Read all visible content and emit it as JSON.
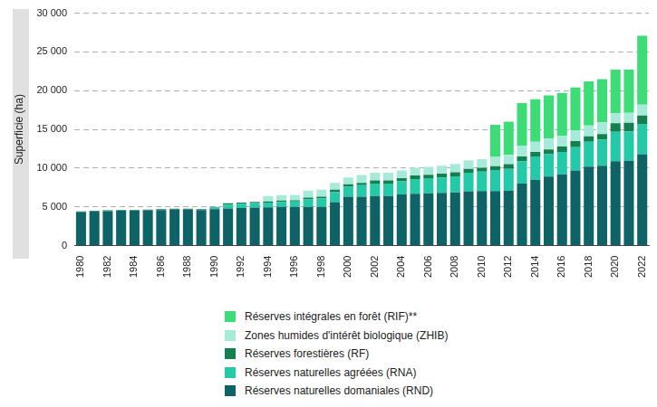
{
  "chart_data": {
    "type": "bar",
    "stacked": true,
    "grid": true,
    "legend": "bottom",
    "y_label": "Superficie (ha)",
    "categories": [
      "1980",
      null,
      "1982",
      null,
      "1984",
      null,
      "1986",
      null,
      "1988",
      null,
      "1990",
      null,
      "1992",
      null,
      "1994",
      null,
      "1996",
      null,
      "1998",
      null,
      "2000",
      null,
      "2002",
      null,
      "2004",
      null,
      "2006",
      null,
      "2008",
      null,
      "2010",
      null,
      "2012",
      null,
      "2014",
      null,
      "2016",
      null,
      "2018",
      null,
      "2020",
      null,
      "2022"
    ],
    "ylim": [
      0,
      30000
    ],
    "yticks": [
      0,
      {
        "value": 5000,
        "label": "5 000"
      },
      {
        "value": 10000,
        "label": "10 000"
      },
      {
        "value": 15000,
        "label": "15 000"
      },
      {
        "value": 20000,
        "label": "20 000"
      },
      {
        "value": 25000,
        "label": "25 000"
      },
      {
        "value": 30000,
        "label": "30 000"
      }
    ],
    "series": [
      {
        "name": "Réserves naturelles domaniales (RND)",
        "color": "#0d6366",
        "values": [
          4300,
          4400,
          4450,
          4500,
          4500,
          4550,
          4600,
          4650,
          4650,
          4600,
          4700,
          4800,
          4850,
          4900,
          4950,
          5000,
          5000,
          5000,
          5000,
          5600,
          6300,
          6300,
          6400,
          6400,
          6600,
          6700,
          6750,
          6800,
          6850,
          7000,
          7050,
          7050,
          7100,
          8000,
          8500,
          8900,
          9200,
          9700,
          10200,
          10300,
          10900,
          10950,
          11800
        ]
      },
      {
        "name": "Réserves naturelles agréées (RNA)",
        "color": "#24c9a8",
        "values": [
          0,
          0,
          0,
          0,
          0,
          0,
          0,
          0,
          0,
          0,
          200,
          500,
          550,
          600,
          600,
          650,
          700,
          1000,
          1100,
          1300,
          1300,
          1500,
          1600,
          1600,
          1700,
          1900,
          1950,
          2000,
          2100,
          2400,
          2500,
          2700,
          2800,
          2900,
          3000,
          2900,
          2900,
          3000,
          3200,
          3400,
          3800,
          3800,
          3900
        ]
      },
      {
        "name": "Réserves forestières (RF)",
        "color": "#14804f",
        "values": [
          100,
          100,
          100,
          100,
          100,
          100,
          100,
          100,
          100,
          100,
          100,
          150,
          150,
          150,
          150,
          150,
          150,
          200,
          200,
          300,
          300,
          300,
          400,
          400,
          400,
          450,
          450,
          500,
          500,
          500,
          500,
          500,
          600,
          600,
          600,
          600,
          700,
          800,
          700,
          700,
          1100,
          1100,
          1100
        ]
      },
      {
        "name": "Zones humides d'intérêt biologique (ZHIB)",
        "color": "#a6ead9",
        "values": [
          0,
          0,
          0,
          0,
          0,
          0,
          0,
          0,
          0,
          0,
          0,
          0,
          0,
          0,
          700,
          700,
          700,
          900,
          900,
          900,
          900,
          1000,
          1000,
          1000,
          1000,
          1000,
          1000,
          1000,
          1100,
          1100,
          1100,
          1200,
          1200,
          1400,
          1300,
          1400,
          1400,
          1400,
          1400,
          1500,
          1300,
          1300,
          1400
        ]
      },
      {
        "name": "Réserves intégrales en forêt (RIF)**",
        "color": "#3ddc77",
        "values": [
          0,
          0,
          0,
          0,
          0,
          0,
          0,
          0,
          0,
          0,
          0,
          0,
          0,
          0,
          0,
          0,
          0,
          0,
          0,
          0,
          0,
          0,
          0,
          0,
          0,
          0,
          0,
          0,
          0,
          0,
          0,
          4150,
          4300,
          5500,
          5500,
          5600,
          5500,
          5500,
          5700,
          5600,
          5600,
          5550,
          8900
        ]
      }
    ]
  }
}
